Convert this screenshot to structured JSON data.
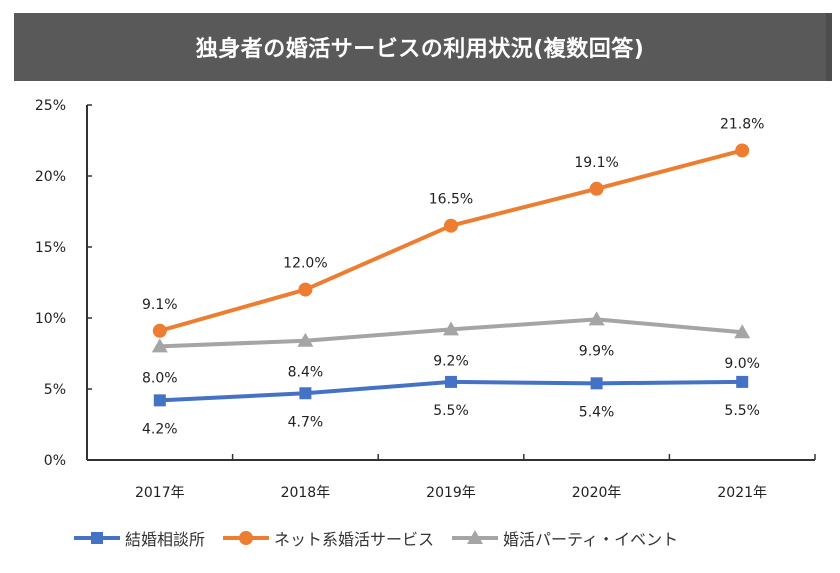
{
  "chart_data": {
    "type": "line",
    "title": "独身者の婚活サービスの利用状況(複数回答)",
    "xlabel": "",
    "ylabel": "",
    "categories": [
      "2017年",
      "2018年",
      "2019年",
      "2020年",
      "2021年"
    ],
    "ylim": [
      0,
      25
    ],
    "yticks": [
      "0%",
      "5%",
      "10%",
      "15%",
      "20%",
      "25%"
    ],
    "ytick_values": [
      0,
      5,
      10,
      15,
      20,
      25
    ],
    "grid": false,
    "legend_position": "bottom",
    "series": [
      {
        "name": "結婚相談所",
        "color": "#4472C4",
        "marker": "square",
        "values": [
          4.2,
          4.7,
          5.5,
          5.4,
          5.5
        ],
        "labels": [
          "4.2%",
          "4.7%",
          "5.5%",
          "5.4%",
          "5.5%"
        ],
        "label_position": "below"
      },
      {
        "name": "ネット系婚活サービス",
        "color": "#ED7D31",
        "marker": "circle",
        "values": [
          9.1,
          12.0,
          16.5,
          19.1,
          21.8
        ],
        "labels": [
          "9.1%",
          "12.0%",
          "16.5%",
          "19.1%",
          "21.8%"
        ],
        "label_position": "above"
      },
      {
        "name": "婚活パーティ・イベント",
        "color": "#A5A5A5",
        "marker": "triangle",
        "values": [
          8.0,
          8.4,
          9.2,
          9.9,
          9.0
        ],
        "labels": [
          "8.0%",
          "8.4%",
          "9.2%",
          "9.9%",
          "9.0%"
        ],
        "label_position": "below"
      }
    ]
  },
  "colors": {
    "title_bar": "#595959",
    "title_text": "#FFFFFF",
    "axis": "#333333"
  }
}
